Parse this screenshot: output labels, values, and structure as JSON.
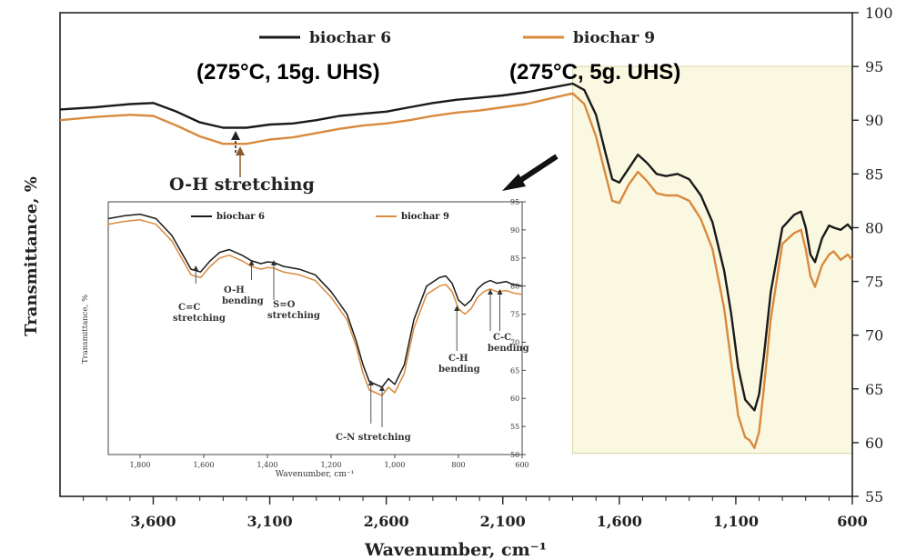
{
  "chart_data": [
    {
      "type": "line",
      "title": "",
      "xlabel": "Wavenumber, cm⁻¹",
      "ylabel": "Transmittance, %",
      "xlim": [
        4000,
        600
      ],
      "ylim": [
        55,
        100
      ],
      "x_ticks": [
        "3,600",
        "3,100",
        "2,600",
        "2,100",
        "1,600",
        "1,100",
        "600"
      ],
      "y_ticks": [
        "55",
        "60",
        "65",
        "70",
        "75",
        "80",
        "85",
        "90",
        "95",
        "100"
      ],
      "legend_position": "top",
      "annotations": {
        "series1_condition": "(275°C, 15g. UHS)",
        "series2_condition": "(275°C, 5g. UHS)",
        "oh_stretching": "O-H stretching"
      },
      "highlight_region": {
        "x": [
          1800,
          600
        ],
        "y": [
          59,
          95
        ]
      },
      "series": [
        {
          "name": "biochar 6",
          "color": "#1a1a1a",
          "x": [
            4000,
            3850,
            3700,
            3600,
            3500,
            3400,
            3300,
            3200,
            3100,
            3000,
            2900,
            2800,
            2700,
            2600,
            2500,
            2400,
            2300,
            2200,
            2100,
            2000,
            1900,
            1800,
            1750,
            1700,
            1660,
            1630,
            1600,
            1560,
            1520,
            1480,
            1440,
            1400,
            1350,
            1300,
            1250,
            1200,
            1150,
            1120,
            1090,
            1060,
            1040,
            1020,
            1000,
            980,
            950,
            900,
            850,
            820,
            800,
            780,
            760,
            730,
            700,
            680,
            650,
            620,
            600
          ],
          "y": [
            91.0,
            91.2,
            91.5,
            91.6,
            90.8,
            89.8,
            89.3,
            89.3,
            89.6,
            89.7,
            90.0,
            90.4,
            90.6,
            90.8,
            91.2,
            91.6,
            91.9,
            92.1,
            92.3,
            92.6,
            93.0,
            93.4,
            92.8,
            90.5,
            87.0,
            84.5,
            84.2,
            85.5,
            86.8,
            86.0,
            85.0,
            84.8,
            85.0,
            84.5,
            83.0,
            80.5,
            76.0,
            72.0,
            67.0,
            64.0,
            63.5,
            63.0,
            64.5,
            68.0,
            74.0,
            80.0,
            81.2,
            81.5,
            80.0,
            77.5,
            76.8,
            79.0,
            80.2,
            80.0,
            79.8,
            80.3,
            79.8
          ]
        },
        {
          "name": "biochar 9",
          "color": "#d98a3d",
          "x": [
            4000,
            3850,
            3700,
            3600,
            3500,
            3400,
            3300,
            3200,
            3100,
            3000,
            2900,
            2800,
            2700,
            2600,
            2500,
            2400,
            2300,
            2200,
            2100,
            2000,
            1900,
            1800,
            1750,
            1700,
            1660,
            1630,
            1600,
            1560,
            1520,
            1480,
            1440,
            1400,
            1350,
            1300,
            1250,
            1200,
            1150,
            1120,
            1090,
            1060,
            1040,
            1020,
            1000,
            980,
            950,
            900,
            850,
            820,
            800,
            780,
            760,
            730,
            700,
            680,
            650,
            620,
            600
          ],
          "y": [
            90.0,
            90.3,
            90.5,
            90.4,
            89.5,
            88.5,
            87.8,
            87.8,
            88.2,
            88.4,
            88.8,
            89.2,
            89.5,
            89.7,
            90.0,
            90.4,
            90.7,
            90.9,
            91.2,
            91.5,
            92.0,
            92.5,
            91.5,
            88.5,
            85.0,
            82.5,
            82.3,
            84.0,
            85.2,
            84.3,
            83.2,
            83.0,
            83.0,
            82.5,
            80.8,
            78.0,
            72.5,
            67.5,
            62.5,
            60.5,
            60.2,
            59.5,
            61.0,
            65.0,
            71.5,
            78.5,
            79.5,
            79.8,
            78.0,
            75.5,
            74.5,
            76.5,
            77.5,
            77.8,
            77.0,
            77.5,
            77.0
          ]
        }
      ]
    },
    {
      "type": "line",
      "title": "",
      "xlabel": "Wavenumber, cm⁻¹",
      "ylabel": "Transmittance, %",
      "xlim": [
        1900,
        600
      ],
      "ylim": [
        50,
        95
      ],
      "x_ticks": [
        "1,800",
        "1,600",
        "1,400",
        "1,200",
        "1,000",
        "800",
        "600"
      ],
      "y_ticks": [
        "50",
        "55",
        "60",
        "65",
        "70",
        "75",
        "80",
        "85",
        "90",
        "95"
      ],
      "legend_position": "top",
      "annotations": {
        "cc_stretching": "C=C stretching",
        "oh_bending": "O-H bending",
        "so_stretching": "S=O stretching",
        "cn_stretching": "C-N stretching",
        "ch_bending": "C-H bending",
        "c_c_bending": "C-C bending"
      },
      "series": [
        {
          "name": "biochar 6",
          "color": "#1a1a1a",
          "x": [
            1900,
            1850,
            1800,
            1750,
            1700,
            1670,
            1640,
            1610,
            1580,
            1550,
            1520,
            1480,
            1450,
            1420,
            1400,
            1380,
            1350,
            1300,
            1250,
            1200,
            1150,
            1120,
            1100,
            1080,
            1060,
            1040,
            1020,
            1000,
            970,
            940,
            900,
            860,
            840,
            820,
            800,
            780,
            760,
            740,
            720,
            700,
            680,
            650,
            630,
            600
          ],
          "y": [
            92.0,
            92.5,
            92.8,
            92.0,
            89.0,
            86.0,
            83.0,
            82.5,
            84.5,
            86.0,
            86.5,
            85.5,
            84.5,
            84.0,
            84.3,
            84.2,
            83.5,
            83.0,
            82.0,
            79.0,
            75.0,
            70.0,
            66.0,
            63.0,
            62.5,
            62.0,
            63.5,
            62.5,
            66.0,
            74.0,
            80.0,
            81.5,
            81.8,
            80.5,
            77.5,
            76.5,
            77.5,
            79.5,
            80.5,
            81.0,
            80.5,
            80.8,
            80.3,
            80.0
          ]
        },
        {
          "name": "biochar 9",
          "color": "#d98a3d",
          "x": [
            1900,
            1850,
            1800,
            1750,
            1700,
            1670,
            1640,
            1610,
            1580,
            1550,
            1520,
            1480,
            1450,
            1420,
            1400,
            1380,
            1350,
            1300,
            1250,
            1200,
            1150,
            1120,
            1100,
            1080,
            1060,
            1040,
            1020,
            1000,
            970,
            940,
            900,
            860,
            840,
            820,
            800,
            780,
            760,
            740,
            720,
            700,
            680,
            650,
            630,
            600
          ],
          "y": [
            91.0,
            91.5,
            91.8,
            91.0,
            88.0,
            85.0,
            82.0,
            81.5,
            83.5,
            85.0,
            85.5,
            84.5,
            83.5,
            83.0,
            83.3,
            83.2,
            82.5,
            82.0,
            81.0,
            78.0,
            74.0,
            69.0,
            64.5,
            61.5,
            61.0,
            60.5,
            62.0,
            61.0,
            64.5,
            72.5,
            78.5,
            80.0,
            80.3,
            79.0,
            76.0,
            75.0,
            76.0,
            78.0,
            79.0,
            79.5,
            79.0,
            79.2,
            78.8,
            78.5
          ]
        }
      ]
    }
  ]
}
